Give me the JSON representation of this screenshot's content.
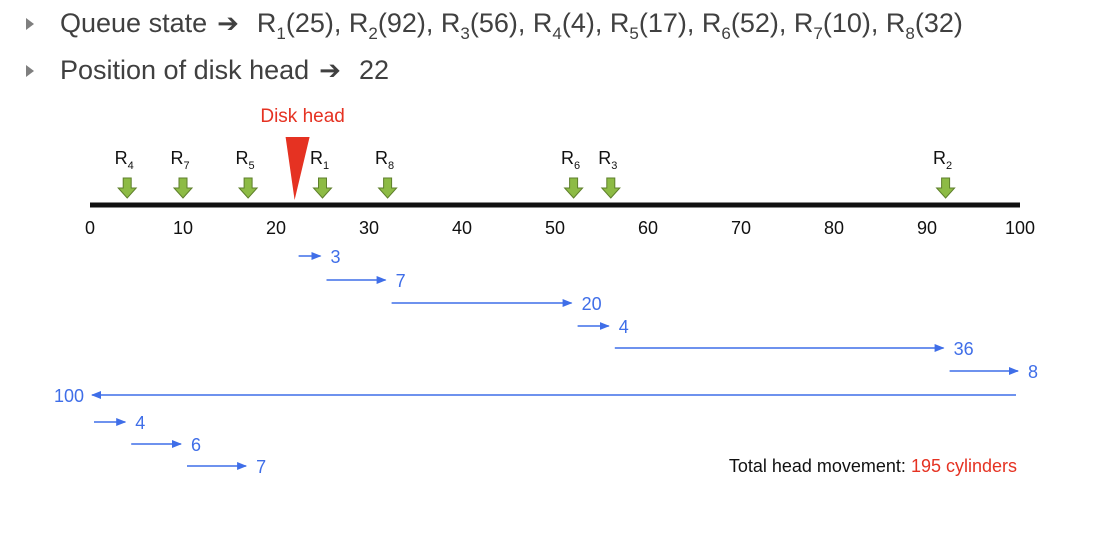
{
  "bullets": {
    "queue_label": "Queue state",
    "queue": [
      {
        "name": "R",
        "sub": "1",
        "value": "25"
      },
      {
        "name": "R",
        "sub": "2",
        "value": "92"
      },
      {
        "name": "R",
        "sub": "3",
        "value": "56"
      },
      {
        "name": "R",
        "sub": "4",
        "value": "4"
      },
      {
        "name": "R",
        "sub": "5",
        "value": "17"
      },
      {
        "name": "R",
        "sub": "6",
        "value": "52"
      },
      {
        "name": "R",
        "sub": "7",
        "value": "10"
      },
      {
        "name": "R",
        "sub": "8",
        "value": "32"
      }
    ],
    "head_label": "Position of disk head",
    "head_value": "22",
    "arrow_glyph": "➔"
  },
  "axis": {
    "min": 0,
    "max": 100,
    "ticks": [
      0,
      10,
      20,
      30,
      40,
      50,
      60,
      70,
      80,
      90,
      100
    ]
  },
  "disk_head": {
    "label": "Disk head",
    "position": 22,
    "color": "#e53222"
  },
  "requests": [
    {
      "label": "R",
      "sub": "4",
      "cylinder": 4
    },
    {
      "label": "R",
      "sub": "7",
      "cylinder": 10
    },
    {
      "label": "R",
      "sub": "5",
      "cylinder": 17
    },
    {
      "label": "R",
      "sub": "1",
      "cylinder": 25
    },
    {
      "label": "R",
      "sub": "8",
      "cylinder": 32
    },
    {
      "label": "R",
      "sub": "6",
      "cylinder": 52
    },
    {
      "label": "R",
      "sub": "3",
      "cylinder": 56
    },
    {
      "label": "R",
      "sub": "2",
      "cylinder": 92
    }
  ],
  "movements": [
    {
      "from": 22,
      "to": 25,
      "distance": "3"
    },
    {
      "from": 25,
      "to": 32,
      "distance": "7"
    },
    {
      "from": 32,
      "to": 52,
      "distance": "20"
    },
    {
      "from": 52,
      "to": 56,
      "distance": "4"
    },
    {
      "from": 56,
      "to": 92,
      "distance": "36"
    },
    {
      "from": 92,
      "to": 100,
      "distance": "8"
    },
    {
      "from": 100,
      "to": 0,
      "distance": "100"
    },
    {
      "from": 0,
      "to": 4,
      "distance": "4"
    },
    {
      "from": 4,
      "to": 10,
      "distance": "6"
    },
    {
      "from": 10,
      "to": 17,
      "distance": "7"
    }
  ],
  "total": {
    "label": "Total head movement:",
    "value": "195 cylinders"
  },
  "colors": {
    "movement": "#3f6ee8",
    "request_arrow": "#8dbb45",
    "request_arrow_stroke": "#5e7f2b",
    "axis": "#111111",
    "total_value": "#e53222"
  }
}
